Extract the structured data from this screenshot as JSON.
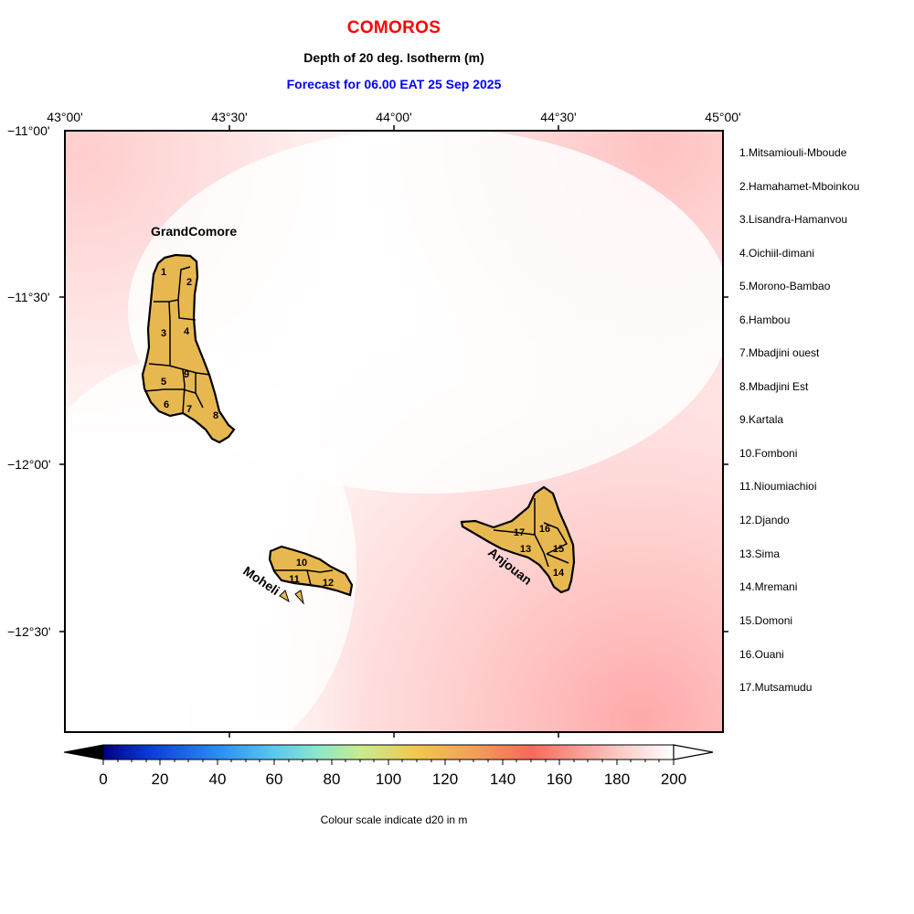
{
  "header": {
    "title": "COMOROS",
    "subtitle": "Depth of 20 deg. Isotherm (m)",
    "forecast": "Forecast for  06.00 EAT 25 Sep 2025"
  },
  "map": {
    "lon_labels": [
      "43°00'",
      "43°30'",
      "44°00'",
      "44°30'",
      "45°00'"
    ],
    "lat_labels": [
      "−11°00'",
      "−11°30'",
      "−12°00'",
      "−12°30'"
    ],
    "island_labels": {
      "grand_comore": "GrandComore",
      "moheli": "Moheli",
      "anjouan": "Anjouan"
    },
    "region_numbers": [
      "1",
      "2",
      "3",
      "4",
      "5",
      "6",
      "7",
      "8",
      "9",
      "10",
      "11",
      "12",
      "13",
      "14",
      "15",
      "16",
      "17"
    ],
    "island_fill": "#e8b850",
    "field_colors": [
      "#ffffff",
      "#ffc4c4"
    ]
  },
  "legend": {
    "items": [
      "1.Mitsamiouli-Mboude",
      "2.Hamahamet-Mboinkou",
      "3.Lisandra-Hamanvou",
      "4.Oichiil-dimani",
      "5.Morono-Bambao",
      "6.Hambou",
      "7.Mbadjini ouest",
      "8.Mbadjini Est",
      "9.Kartala",
      "10.Fomboni",
      "11.Nioumiachioi",
      "12.Djando",
      "13.Sima",
      "14.Mremani",
      "15.Domoni",
      "16.Ouani",
      "17.Mutsamudu"
    ]
  },
  "colorbar": {
    "ticks": [
      "0",
      "20",
      "40",
      "60",
      "80",
      "100",
      "120",
      "140",
      "160",
      "180",
      "200"
    ],
    "caption": "Colour scale indicate d20 in m",
    "colors": [
      "#000080",
      "#0a3bd6",
      "#2a8cf0",
      "#5cc8f0",
      "#8ee8c8",
      "#c8ec90",
      "#f0c850",
      "#f29a5a",
      "#f56a58",
      "#f8a8a0",
      "#fcd8d4",
      "#ffffff"
    ]
  }
}
